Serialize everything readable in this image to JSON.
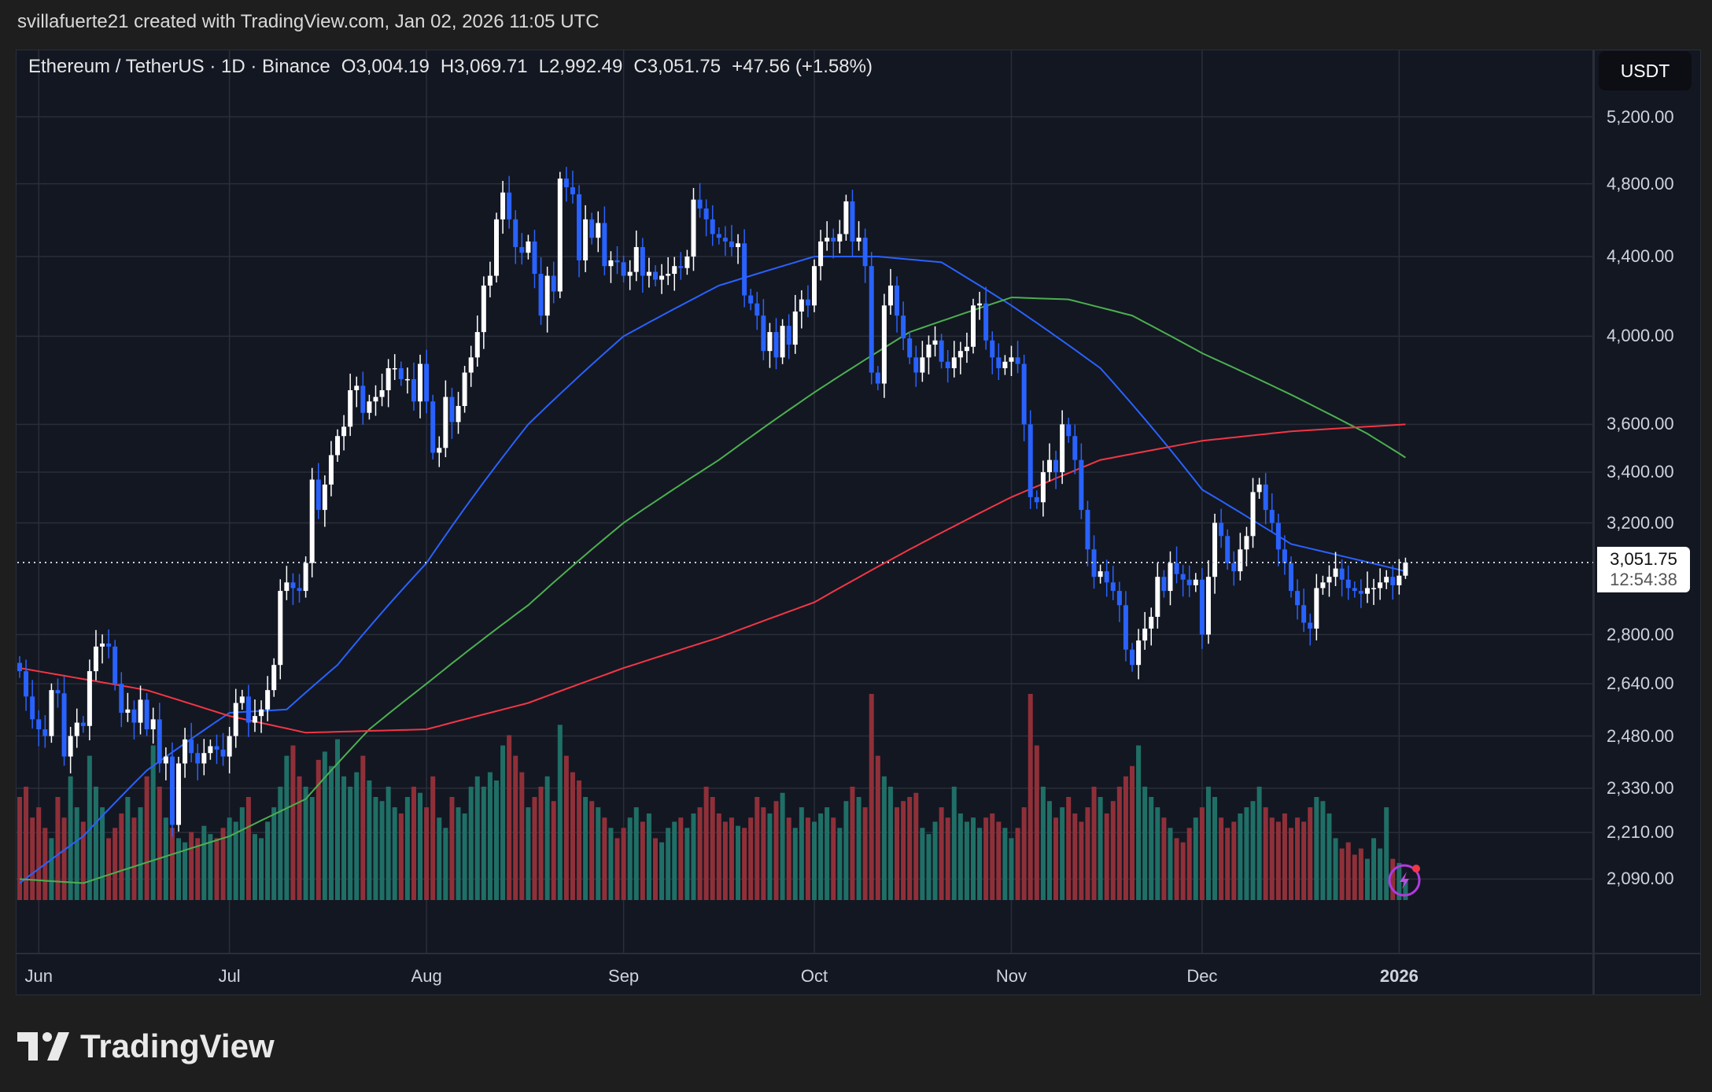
{
  "header": {
    "credit": "svillafuerte21 created with TradingView.com, Jan 02, 2026 11:05 UTC"
  },
  "legend": {
    "symbol": "Ethereum / TetherUS · 1D · Binance",
    "open": "O3,004.19",
    "high": "H3,069.71",
    "low": "L2,992.49",
    "close": "C3,051.75",
    "change": "+47.56 (+1.58%)"
  },
  "currency_button": "USDT",
  "current_price": {
    "value": "3,051.75",
    "countdown": "12:54:38"
  },
  "logo": {
    "text": "TradingView"
  },
  "colors": {
    "up_candle": "#ffffff",
    "down_candle": "#2962ff",
    "up_volume": "#1f6f66",
    "down_volume": "#8f3039",
    "ma_blue": "#2962ff",
    "ma_green": "#4caf50",
    "ma_red": "#f23645",
    "background": "#131722",
    "grid": "#2a2e39"
  },
  "chart_data": {
    "type": "candlestick",
    "scale": "log",
    "grid": true,
    "first_date": "2025-05-29",
    "price_ticks": [
      5200,
      4800,
      4400,
      4000,
      3600,
      3400,
      3200,
      2800,
      2640,
      2480,
      2330,
      2210,
      2090
    ],
    "price_tick_labels": [
      "5,200.00",
      "4,800.00",
      "4,400.00",
      "4,000.00",
      "3,600.00",
      "3,400.00",
      "3,200.00",
      "2,800.00",
      "2,640.00",
      "2,480.00",
      "2,330.00",
      "2,210.00",
      "2,090.00"
    ],
    "time_labels": [
      {
        "label": "Jun",
        "index": 3
      },
      {
        "label": "Jul",
        "index": 33
      },
      {
        "label": "Aug",
        "index": 64
      },
      {
        "label": "Sep",
        "index": 95
      },
      {
        "label": "Oct",
        "index": 125
      },
      {
        "label": "Nov",
        "index": 156
      },
      {
        "label": "Dec",
        "index": 186
      },
      {
        "label": "2026",
        "index": 217,
        "bold": true
      }
    ],
    "closes": [
      2680,
      2600,
      2530,
      2500,
      2480,
      2620,
      2610,
      2420,
      2480,
      2520,
      2510,
      2680,
      2760,
      2770,
      2760,
      2640,
      2550,
      2560,
      2520,
      2590,
      2500,
      2530,
      2400,
      2420,
      2230,
      2400,
      2470,
      2430,
      2400,
      2430,
      2450,
      2440,
      2420,
      2480,
      2580,
      2600,
      2520,
      2540,
      2560,
      2620,
      2700,
      2950,
      2980,
      2960,
      2950,
      3050,
      3370,
      3250,
      3350,
      3470,
      3550,
      3590,
      3750,
      3770,
      3650,
      3700,
      3720,
      3750,
      3850,
      3850,
      3800,
      3800,
      3700,
      3870,
      3700,
      3480,
      3500,
      3720,
      3610,
      3680,
      3830,
      3900,
      4020,
      4250,
      4300,
      4600,
      4750,
      4600,
      4450,
      4420,
      4480,
      4310,
      4100,
      4300,
      4220,
      4830,
      4780,
      4740,
      4380,
      4600,
      4500,
      4580,
      4350,
      4380,
      4370,
      4300,
      4320,
      4450,
      4300,
      4320,
      4280,
      4300,
      4310,
      4350,
      4340,
      4400,
      4710,
      4660,
      4600,
      4520,
      4500,
      4480,
      4450,
      4470,
      4200,
      4160,
      4100,
      3930,
      4020,
      3900,
      4050,
      3960,
      4120,
      4180,
      4150,
      4350,
      4480,
      4500,
      4480,
      4520,
      4700,
      4480,
      4500,
      4350,
      3830,
      3780,
      4150,
      4250,
      4100,
      3990,
      3900,
      3830,
      3900,
      3960,
      3980,
      3880,
      3850,
      3900,
      3930,
      3950,
      4150,
      4160,
      3980,
      3900,
      3850,
      3880,
      3900,
      3870,
      3600,
      3300,
      3280,
      3400,
      3450,
      3400,
      3600,
      3550,
      3450,
      3250,
      3100,
      3000,
      3020,
      2980,
      2950,
      2900,
      2750,
      2700,
      2780,
      2820,
      2860,
      3000,
      2950,
      3050,
      3010,
      2990,
      2970,
      2990,
      2800,
      3000,
      3200,
      3150,
      3050,
      3020,
      3100,
      3150,
      3320,
      3350,
      3250,
      3200,
      3100,
      3050,
      2950,
      2900,
      2840,
      2820,
      2960,
      2980,
      3000,
      3030,
      2990,
      2960,
      2950,
      2940,
      2960,
      2960,
      2980,
      3000,
      2970,
      3004.19,
      3051.75
    ],
    "last_candle": {
      "open": 3004.19,
      "high": 3069.71,
      "low": 2992.49,
      "close": 3051.75
    },
    "volume_relative": [
      50,
      55,
      40,
      45,
      35,
      30,
      50,
      40,
      60,
      45,
      38,
      70,
      55,
      45,
      30,
      35,
      42,
      50,
      40,
      45,
      60,
      75,
      55,
      40,
      35,
      30,
      28,
      33,
      30,
      36,
      32,
      30,
      35,
      40,
      38,
      45,
      50,
      32,
      30,
      38,
      45,
      55,
      70,
      75,
      60,
      55,
      50,
      68,
      72,
      65,
      78,
      60,
      55,
      62,
      70,
      58,
      50,
      48,
      55,
      45,
      42,
      50,
      55,
      52,
      45,
      60,
      40,
      35,
      50,
      45,
      42,
      55,
      60,
      55,
      62,
      58,
      75,
      80,
      70,
      62,
      45,
      50,
      55,
      60,
      48,
      85,
      70,
      62,
      58,
      50,
      48,
      45,
      40,
      35,
      30,
      35,
      40,
      45,
      38,
      42,
      30,
      28,
      35,
      38,
      40,
      35,
      42,
      45,
      55,
      50,
      42,
      38,
      40,
      36,
      35,
      40,
      50,
      45,
      42,
      48,
      52,
      40,
      35,
      45,
      40,
      38,
      42,
      45,
      40,
      35,
      48,
      55,
      50,
      45,
      100,
      70,
      60,
      55,
      45,
      48,
      50,
      52,
      35,
      32,
      38,
      45,
      40,
      55,
      42,
      38,
      40,
      35,
      40,
      42,
      38,
      35,
      30,
      35,
      45,
      100,
      75,
      55,
      48,
      40,
      45,
      50,
      42,
      38,
      45,
      55,
      50,
      42,
      48,
      55,
      60,
      65,
      75,
      55,
      50,
      45,
      40,
      35,
      30,
      28,
      35,
      40,
      45,
      55,
      50,
      40,
      35,
      38,
      42,
      45,
      48,
      55,
      45,
      40,
      38,
      42,
      35,
      40,
      38,
      45,
      50,
      48,
      42,
      30,
      25,
      28,
      22,
      25,
      20,
      30,
      25,
      45,
      20,
      18,
      10
    ],
    "moving_averages": [
      {
        "color": "blue",
        "points": [
          [
            0,
            2080
          ],
          [
            10,
            2200
          ],
          [
            20,
            2380
          ],
          [
            33,
            2550
          ],
          [
            42,
            2560
          ],
          [
            50,
            2700
          ],
          [
            64,
            3050
          ],
          [
            80,
            3600
          ],
          [
            95,
            4000
          ],
          [
            110,
            4250
          ],
          [
            125,
            4400
          ],
          [
            135,
            4400
          ],
          [
            145,
            4370
          ],
          [
            156,
            4150
          ],
          [
            170,
            3850
          ],
          [
            186,
            3330
          ],
          [
            200,
            3120
          ],
          [
            218,
            3020
          ]
        ]
      },
      {
        "color": "green",
        "points": [
          [
            0,
            2090
          ],
          [
            10,
            2080
          ],
          [
            33,
            2200
          ],
          [
            45,
            2300
          ],
          [
            55,
            2500
          ],
          [
            64,
            2640
          ],
          [
            80,
            2900
          ],
          [
            95,
            3200
          ],
          [
            110,
            3450
          ],
          [
            125,
            3740
          ],
          [
            140,
            4020
          ],
          [
            156,
            4190
          ],
          [
            165,
            4180
          ],
          [
            175,
            4100
          ],
          [
            186,
            3920
          ],
          [
            200,
            3730
          ],
          [
            212,
            3560
          ],
          [
            218,
            3460
          ]
        ]
      },
      {
        "color": "red",
        "points": [
          [
            0,
            2690
          ],
          [
            20,
            2620
          ],
          [
            33,
            2540
          ],
          [
            45,
            2490
          ],
          [
            64,
            2500
          ],
          [
            80,
            2580
          ],
          [
            95,
            2690
          ],
          [
            110,
            2790
          ],
          [
            125,
            2910
          ],
          [
            140,
            3100
          ],
          [
            156,
            3300
          ],
          [
            170,
            3450
          ],
          [
            186,
            3530
          ],
          [
            200,
            3570
          ],
          [
            218,
            3600
          ]
        ]
      }
    ]
  }
}
